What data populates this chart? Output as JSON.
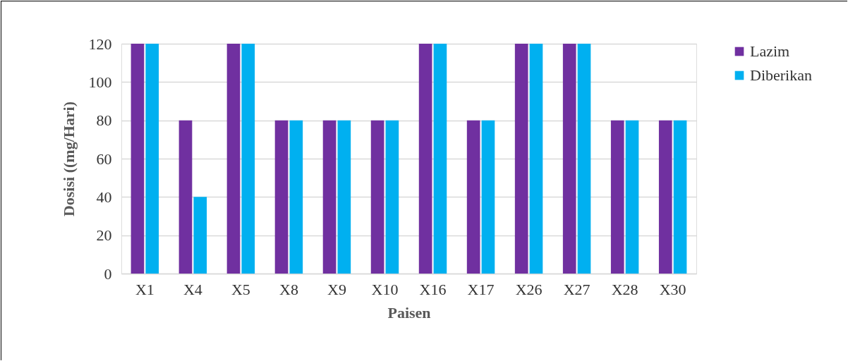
{
  "chart_data": {
    "type": "bar",
    "xlabel": "Paisen",
    "ylabel": "Dosisi ((mg/Hari)",
    "categories": [
      "X1",
      "X4",
      "X5",
      "X8",
      "X9",
      "X10",
      "X16",
      "X17",
      "X26",
      "X27",
      "X28",
      "X30"
    ],
    "series": [
      {
        "name": "Lazim",
        "color": "#7030a0",
        "values": [
          120,
          80,
          120,
          80,
          80,
          80,
          120,
          80,
          120,
          120,
          80,
          80
        ]
      },
      {
        "name": "Diberikan",
        "color": "#00b0f0",
        "values": [
          120,
          40,
          120,
          80,
          80,
          80,
          120,
          80,
          120,
          120,
          80,
          80
        ]
      }
    ],
    "ylim": [
      0,
      120
    ],
    "yticks": [
      0,
      20,
      40,
      60,
      80,
      100,
      120
    ],
    "grid": "y",
    "legend": "right"
  }
}
